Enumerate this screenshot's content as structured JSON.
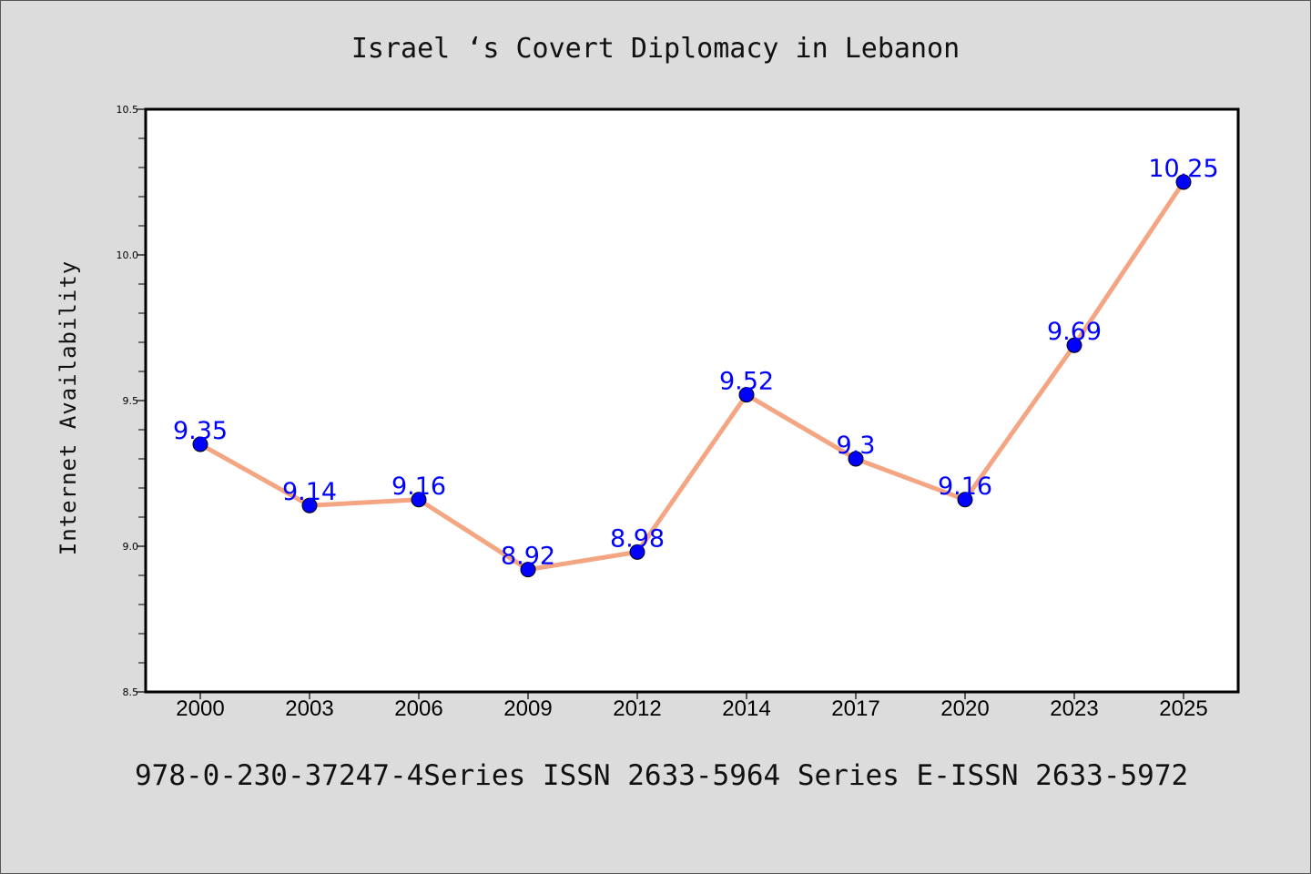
{
  "chart_data": {
    "type": "line",
    "title": "Israel ‘s Covert Diplomacy in Lebanon",
    "xlabel": "",
    "ylabel": "Internet Availability",
    "categories": [
      "2000",
      "2003",
      "2006",
      "2009",
      "2012",
      "2014",
      "2017",
      "2020",
      "2023",
      "2025"
    ],
    "values": [
      9.35,
      9.14,
      9.16,
      8.92,
      8.98,
      9.52,
      9.3,
      9.16,
      9.69,
      10.25
    ],
    "data_labels": [
      "9.35",
      "9.14",
      "9.16",
      "8.92",
      "8.98",
      "9.52",
      "9.3",
      "9.16",
      "9.69",
      "10.25"
    ],
    "ylim": [
      8.5,
      10.5
    ],
    "yticks": [
      "8.5",
      "9.0",
      "9.5",
      "10.0",
      "10.5"
    ],
    "grid": false,
    "line_color": "#f4a582",
    "marker_color": "#0000ff",
    "label_color": "#0000ff"
  },
  "footer": {
    "text": "978-0-230-37247-4Series ISSN 2633-5964 Series E-ISSN 2633-5972"
  }
}
